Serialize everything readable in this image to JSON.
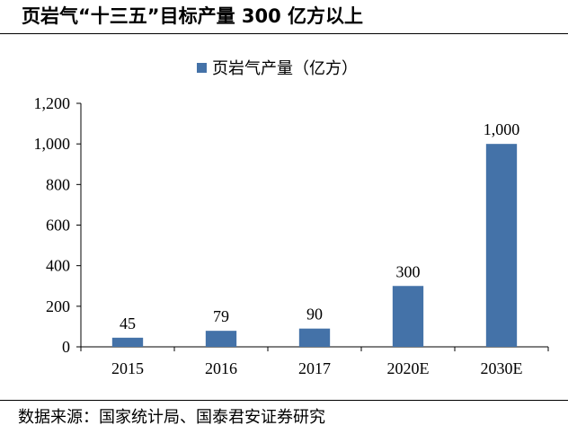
{
  "header": {
    "title": "页岩气“十三五”目标产量 300 亿方以上"
  },
  "footer": {
    "source": "数据来源：国家统计局、国泰君安证券研究"
  },
  "chart_data": {
    "type": "bar",
    "categories": [
      "2015",
      "2016",
      "2017",
      "2020E",
      "2030E"
    ],
    "series": [
      {
        "name": "页岩气产量（亿方）",
        "values": [
          45,
          79,
          90,
          300,
          1000
        ],
        "color": "#4472a8"
      }
    ],
    "data_labels": [
      "45",
      "79",
      "90",
      "300",
      "1,000"
    ],
    "ylim": [
      0,
      1200
    ],
    "yticks": [
      0,
      200,
      400,
      600,
      800,
      1000,
      1200
    ],
    "ytick_labels": [
      "0",
      "200",
      "400",
      "600",
      "800",
      "1,000",
      "1,200"
    ],
    "grid": false,
    "legend_position": "top"
  }
}
